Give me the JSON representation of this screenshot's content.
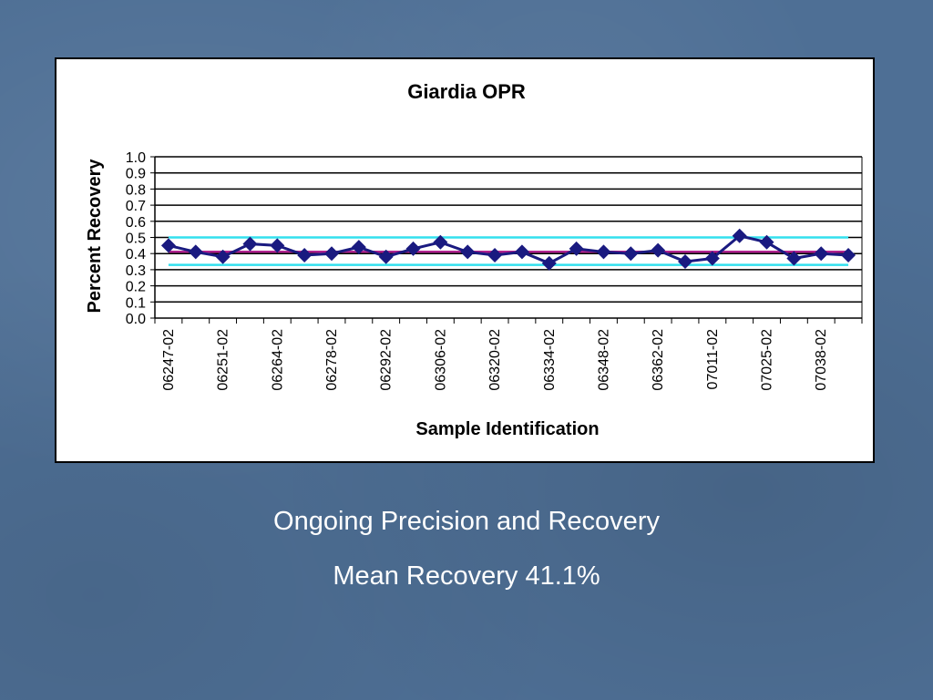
{
  "slide": {
    "caption_line1": "Ongoing Precision and Recovery",
    "caption_line2": "Mean Recovery 41.1%",
    "background_color": "#4e6f95"
  },
  "chart_data": {
    "type": "line",
    "title": "Giardia OPR",
    "xlabel": "Sample Identification",
    "ylabel": "Percent Recovery",
    "ylim": [
      0.0,
      1.0
    ],
    "yticks": [
      "0.0",
      "0.1",
      "0.2",
      "0.3",
      "0.4",
      "0.5",
      "0.6",
      "0.7",
      "0.8",
      "0.9",
      "1.0"
    ],
    "grid": true,
    "categories": [
      "06247-02",
      "",
      "06251-02",
      "",
      "06264-02",
      "",
      "06278-02",
      "",
      "06292-02",
      "",
      "06306-02",
      "",
      "06320-02",
      "",
      "06334-02",
      "",
      "06348-02",
      "",
      "06362-02",
      "",
      "07011-02",
      "",
      "07025-02",
      "",
      "07038-02",
      ""
    ],
    "series": [
      {
        "name": "",
        "color": "#1a1a80",
        "marker": "diamond",
        "values": [
          0.45,
          0.41,
          0.38,
          0.46,
          0.45,
          0.39,
          0.4,
          0.44,
          0.38,
          0.43,
          0.47,
          0.41,
          0.39,
          0.41,
          0.34,
          0.43,
          0.41,
          0.4,
          0.42,
          0.35,
          0.37,
          0.51,
          0.47,
          0.37,
          0.4,
          0.39
        ]
      }
    ],
    "reference_lines": [
      {
        "value": 0.5,
        "color": "#33e0ee"
      },
      {
        "value": 0.411,
        "color": "#b0238f"
      },
      {
        "value": 0.33,
        "color": "#33e0ee"
      }
    ]
  }
}
